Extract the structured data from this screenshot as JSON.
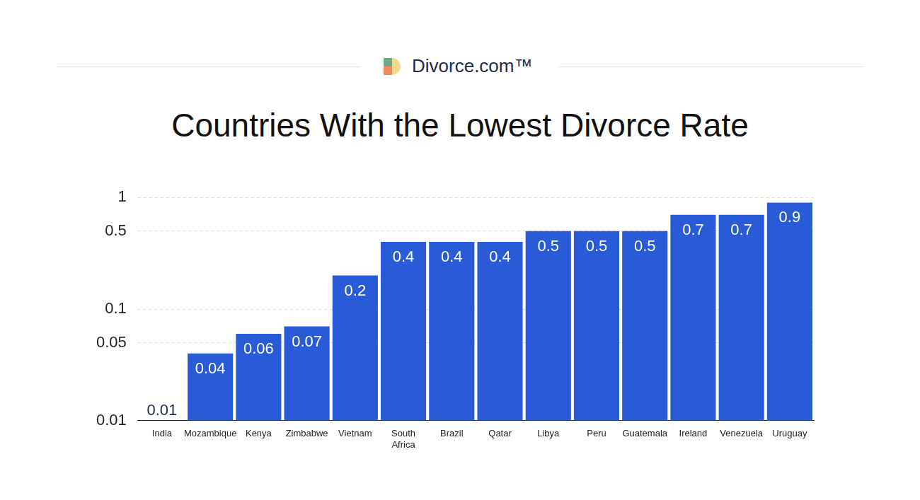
{
  "header": {
    "brand": "Divorce.com™"
  },
  "chart_data": {
    "type": "bar",
    "title": "Countries With the Lowest Divorce Rate",
    "categories": [
      "India",
      "Mozambique",
      "Kenya",
      "Zimbabwe",
      "Vietnam",
      "South Africa",
      "Brazil",
      "Qatar",
      "Libya",
      "Peru",
      "Guatemala",
      "Ireland",
      "Venezuela",
      "Uruguay"
    ],
    "values": [
      0.01,
      0.04,
      0.06,
      0.07,
      0.2,
      0.4,
      0.4,
      0.4,
      0.5,
      0.5,
      0.5,
      0.7,
      0.7,
      0.9
    ],
    "color": "#2a5bd7",
    "ylim": [
      0.01,
      1
    ],
    "yticks": [
      0.01,
      0.05,
      0.1,
      0.5,
      1
    ],
    "log": "y",
    "grid": true,
    "data_labels": true
  }
}
